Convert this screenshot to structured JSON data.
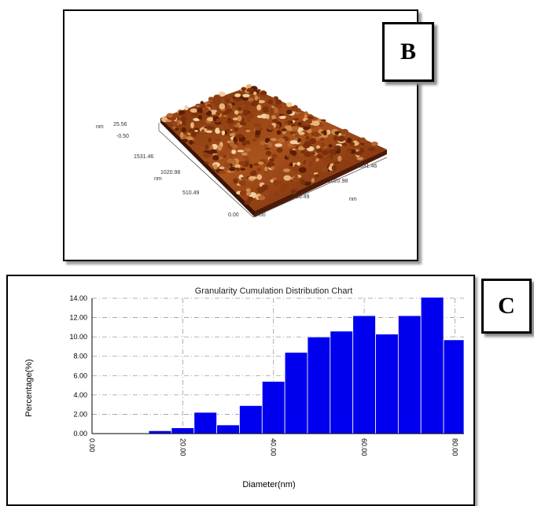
{
  "panel_b": {
    "label": "B",
    "afm_ticks": {
      "z_unit": "nm",
      "z_max": "25.56",
      "z_min": "-0.50",
      "y_ticks": [
        "1531.46",
        "1020.98",
        "510.49",
        "0.00"
      ],
      "y_unit": "nm",
      "x_ticks": [
        "0.00",
        "510.49",
        "1020.98",
        "1531.46"
      ],
      "x_unit": "nm"
    }
  },
  "panel_c": {
    "label": "C"
  },
  "chart_data": {
    "type": "bar",
    "title": "Granularity Cumulation Distribution  Chart",
    "xlabel": "Diameter(nm)",
    "ylabel": "Percentage(%)",
    "ylim": [
      0,
      14
    ],
    "xlim": [
      0,
      82
    ],
    "y_ticks": [
      "0.00",
      "2.00",
      "4.00",
      "6.00",
      "8.00",
      "10.00",
      "12.00",
      "14.00"
    ],
    "x_ticks": [
      {
        "value": 0,
        "label": "0.00"
      },
      {
        "value": 20,
        "label": "20.00"
      },
      {
        "value": 40,
        "label": "40.00"
      },
      {
        "value": 60,
        "label": "60.00"
      },
      {
        "value": 80,
        "label": "80.00"
      }
    ],
    "bar_color": "#0000ee",
    "grid": true,
    "bins": [
      {
        "x0": 12.5,
        "x1": 17.5,
        "value": 0.3
      },
      {
        "x0": 17.5,
        "x1": 22.5,
        "value": 0.6
      },
      {
        "x0": 22.5,
        "x1": 27.5,
        "value": 2.2
      },
      {
        "x0": 27.5,
        "x1": 32.5,
        "value": 0.9
      },
      {
        "x0": 32.5,
        "x1": 37.5,
        "value": 2.9
      },
      {
        "x0": 37.5,
        "x1": 42.5,
        "value": 5.4
      },
      {
        "x0": 42.5,
        "x1": 47.5,
        "value": 8.4
      },
      {
        "x0": 47.5,
        "x1": 52.5,
        "value": 10.0
      },
      {
        "x0": 52.5,
        "x1": 57.5,
        "value": 10.6
      },
      {
        "x0": 57.5,
        "x1": 62.5,
        "value": 12.2
      },
      {
        "x0": 62.5,
        "x1": 67.5,
        "value": 10.3
      },
      {
        "x0": 67.5,
        "x1": 72.5,
        "value": 12.2
      },
      {
        "x0": 72.5,
        "x1": 77.5,
        "value": 14.1
      },
      {
        "x0": 77.5,
        "x1": 82.0,
        "value": 9.7
      }
    ]
  }
}
